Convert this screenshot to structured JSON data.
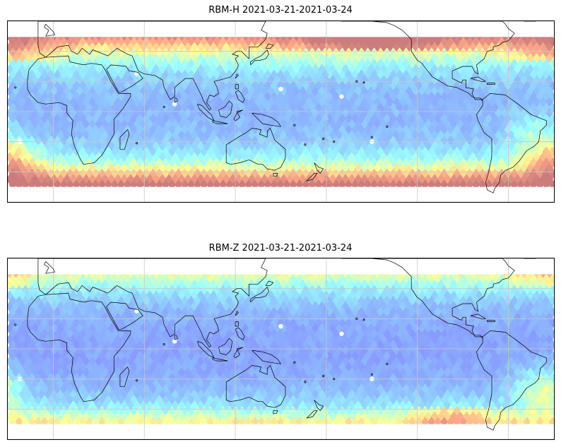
{
  "panels": [
    {
      "title": "RBM-H 2021-03-21-2021-03-24",
      "variant": "H"
    },
    {
      "title": "RBM-Z 2021-03-21-2021-03-24",
      "variant": "Z"
    }
  ],
  "map": {
    "projection": "plate-carree",
    "central_longitude": 150,
    "lat_range": [
      -60,
      60
    ],
    "data_lat_range": [
      -50,
      50
    ],
    "gridlines": true,
    "colormap": "jet",
    "opacity": 0.6,
    "colors": {
      "low": "#4b4bff",
      "mid_low": "#5ea0ff",
      "mid": "#5fffff",
      "mid_high": "#ffff5f",
      "high": "#ff6f3f",
      "max": "#c04040",
      "coast": "#000000",
      "grid": "#c8c8c8"
    }
  }
}
